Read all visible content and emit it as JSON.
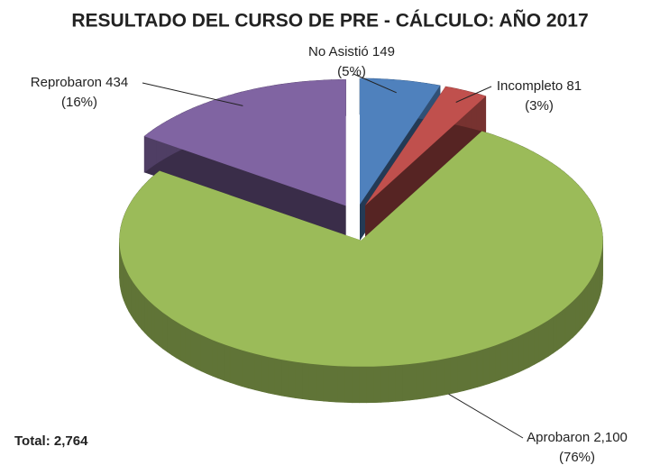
{
  "chart_data": {
    "type": "pie",
    "title": "RESULTADO DEL CURSO DE PRE - CÁLCULO:  AÑO 2017",
    "categories": [
      "No Asistió",
      "Incompleto",
      "Aprobaron",
      "Reprobaron"
    ],
    "values": [
      149,
      81,
      2100,
      434
    ],
    "value_labels": [
      "149",
      "81",
      "2,100",
      "434"
    ],
    "percent_labels": [
      "(5%)",
      "(3%)",
      "(76%)",
      "(16%)"
    ],
    "colors": [
      "#4f81bd",
      "#c0504d",
      "#9bbb59",
      "#8064a2"
    ],
    "annotation": "Total: 2,764"
  }
}
